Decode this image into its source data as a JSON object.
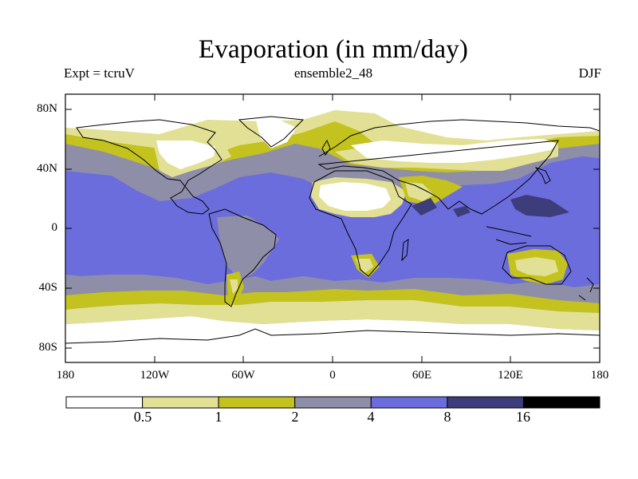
{
  "title": "Evaporation (in mm/day)",
  "experiment_label": "Expt = tcruV",
  "ensemble_label": "ensemble2_48",
  "season_label": "DJF",
  "y_axis_labels": [
    "80N",
    "40N",
    "0",
    "40S",
    "80S"
  ],
  "x_axis_labels": [
    "180",
    "120W",
    "60W",
    "0",
    "60E",
    "120E",
    "180"
  ],
  "colorbar": {
    "colors": [
      "#ffffff",
      "#e2e094",
      "#c3c21e",
      "#8f8ea8",
      "#6c6ddc",
      "#3d3d7c",
      "#000000"
    ],
    "labels": [
      "0.5",
      "1",
      "2",
      "4",
      "8",
      "16"
    ]
  },
  "chart_data": {
    "type": "heatmap",
    "variable": "Evaporation",
    "units": "mm/day",
    "season": "DJF",
    "x_range": [
      -180,
      180
    ],
    "y_range": [
      -90,
      90
    ],
    "levels": [
      0.5,
      1,
      2,
      4,
      8,
      16
    ],
    "xticks": [
      -180,
      -120,
      -60,
      0,
      60,
      120,
      180
    ],
    "yticks": [
      80,
      40,
      0,
      -40,
      -80
    ]
  }
}
